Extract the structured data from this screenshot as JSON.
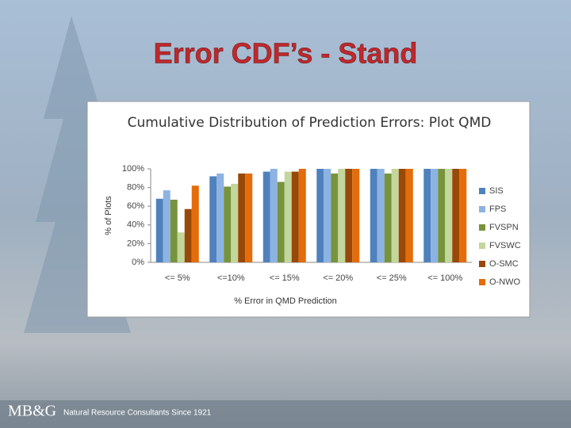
{
  "slide": {
    "title": "Error CDF’s - Stand"
  },
  "footer": {
    "logo": "MB&G",
    "tagline": "Natural Resource Consultants Since 1921"
  },
  "chart_data": {
    "type": "bar",
    "title": "Cumulative Distribution of Prediction Errors: Plot QMD",
    "x_label": "% Error in QMD Prediction",
    "y_label": "% of Plots",
    "categories": [
      "<= 5%",
      "<=10%",
      "<= 15%",
      "<= 20%",
      "<= 25%",
      "<= 100%"
    ],
    "series": [
      {
        "name": "SIS",
        "color": "#4f81bd",
        "values": [
          68,
          92,
          97,
          100,
          100,
          100
        ]
      },
      {
        "name": "FPS",
        "color": "#8db3e2",
        "values": [
          77,
          95,
          100,
          100,
          100,
          100
        ]
      },
      {
        "name": "FVSPN",
        "color": "#77933c",
        "values": [
          67,
          81,
          86,
          95,
          95,
          100
        ]
      },
      {
        "name": "FVSWC",
        "color": "#c3d69b",
        "values": [
          32,
          84,
          97,
          100,
          100,
          100
        ]
      },
      {
        "name": "O-SMC",
        "color": "#984807",
        "values": [
          57,
          95,
          97,
          100,
          100,
          100
        ]
      },
      {
        "name": "O-NWO",
        "color": "#e46c0a",
        "values": [
          82,
          95,
          100,
          100,
          100,
          100
        ]
      }
    ],
    "ylim": [
      0,
      100
    ],
    "yticks": [
      {
        "value": 0,
        "label": "0%"
      },
      {
        "value": 20,
        "label": "20%"
      },
      {
        "value": 40,
        "label": "40%"
      },
      {
        "value": 60,
        "label": "60%"
      },
      {
        "value": 80,
        "label": "80%"
      },
      {
        "value": 100,
        "label": "100%"
      }
    ],
    "grid": false,
    "legend": "right"
  }
}
